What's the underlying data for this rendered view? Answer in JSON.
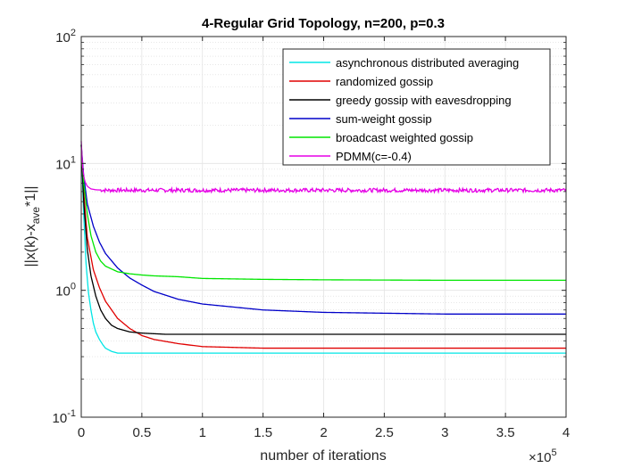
{
  "chart_data": {
    "type": "line",
    "title": "4-Regular Grid Topology, n=200, p=0.3",
    "xlabel": "number of iterations",
    "ylabel_main": "||x(k)-x",
    "ylabel_sub": "ave",
    "ylabel_tail": "*1||",
    "x_exponent_prefix": "×10",
    "x_exponent_power": "5",
    "xlim": [
      0,
      400000
    ],
    "ylim": [
      0.1,
      100
    ],
    "yscale": "log",
    "grid": true,
    "minor_grid": true,
    "legend_position": "top-right",
    "x_ticks": [
      {
        "value": 0,
        "label": "0"
      },
      {
        "value": 50000,
        "label": "0.5"
      },
      {
        "value": 100000,
        "label": "1"
      },
      {
        "value": 150000,
        "label": "1.5"
      },
      {
        "value": 200000,
        "label": "2"
      },
      {
        "value": 250000,
        "label": "2.5"
      },
      {
        "value": 300000,
        "label": "3"
      },
      {
        "value": 350000,
        "label": "3.5"
      },
      {
        "value": 400000,
        "label": "4"
      }
    ],
    "y_ticks": [
      {
        "value": 0.1,
        "base": "10",
        "exp": "-1"
      },
      {
        "value": 1,
        "base": "10",
        "exp": "0"
      },
      {
        "value": 10,
        "base": "10",
        "exp": "1"
      },
      {
        "value": 100,
        "base": "10",
        "exp": "2"
      }
    ],
    "series": [
      {
        "name": "asynchronous distributed averaging",
        "color": "#00e5e5",
        "x": [
          0,
          1000,
          2000,
          4000,
          6000,
          8000,
          10000,
          12000,
          15000,
          18000,
          20000,
          25000,
          30000,
          40000,
          60000,
          100000,
          200000,
          300000,
          400000
        ],
        "y": [
          14,
          7.5,
          4,
          1.6,
          0.95,
          0.7,
          0.55,
          0.47,
          0.41,
          0.37,
          0.35,
          0.33,
          0.32,
          0.32,
          0.32,
          0.32,
          0.32,
          0.32,
          0.32
        ]
      },
      {
        "name": "randomized gossip",
        "color": "#e00000",
        "x": [
          0,
          2000,
          5000,
          10000,
          15000,
          20000,
          30000,
          40000,
          50000,
          60000,
          80000,
          100000,
          150000,
          200000,
          300000,
          400000
        ],
        "y": [
          14,
          6,
          2.6,
          1.45,
          1.05,
          0.82,
          0.6,
          0.5,
          0.44,
          0.41,
          0.38,
          0.36,
          0.35,
          0.35,
          0.35,
          0.35
        ]
      },
      {
        "name": "greedy gossip with eavesdropping",
        "color": "#000000",
        "x": [
          0,
          2000,
          5000,
          8000,
          12000,
          16000,
          20000,
          25000,
          30000,
          40000,
          50000,
          70000,
          100000,
          200000,
          300000,
          400000
        ],
        "y": [
          14,
          5,
          2.1,
          1.3,
          0.9,
          0.7,
          0.6,
          0.53,
          0.5,
          0.47,
          0.46,
          0.45,
          0.45,
          0.45,
          0.45,
          0.45
        ]
      },
      {
        "name": "sum-weight gossip",
        "color": "#0000c8",
        "x": [
          0,
          2000,
          5000,
          10000,
          15000,
          20000,
          30000,
          40000,
          50000,
          60000,
          80000,
          100000,
          150000,
          200000,
          250000,
          300000,
          400000
        ],
        "y": [
          14,
          8,
          4.8,
          3.2,
          2.4,
          1.95,
          1.5,
          1.25,
          1.1,
          0.98,
          0.85,
          0.78,
          0.7,
          0.67,
          0.66,
          0.65,
          0.65
        ]
      },
      {
        "name": "broadcast weighted gossip",
        "color": "#00e600",
        "x": [
          0,
          2000,
          5000,
          8000,
          12000,
          16000,
          20000,
          30000,
          40000,
          50000,
          60000,
          80000,
          100000,
          150000,
          200000,
          300000,
          400000
        ],
        "y": [
          14,
          7,
          4,
          2.7,
          2,
          1.7,
          1.55,
          1.4,
          1.35,
          1.32,
          1.3,
          1.28,
          1.24,
          1.22,
          1.21,
          1.2,
          1.2
        ]
      },
      {
        "name": "PDMM(c=-0.4)",
        "color": "#e600e6",
        "x": [
          0,
          1000,
          2000,
          3000,
          5000,
          8000,
          12000,
          20000,
          400000
        ],
        "y": [
          15,
          9.5,
          8,
          7.2,
          6.6,
          6.3,
          6.2,
          6.15,
          6.15
        ],
        "noisy": true
      }
    ]
  }
}
